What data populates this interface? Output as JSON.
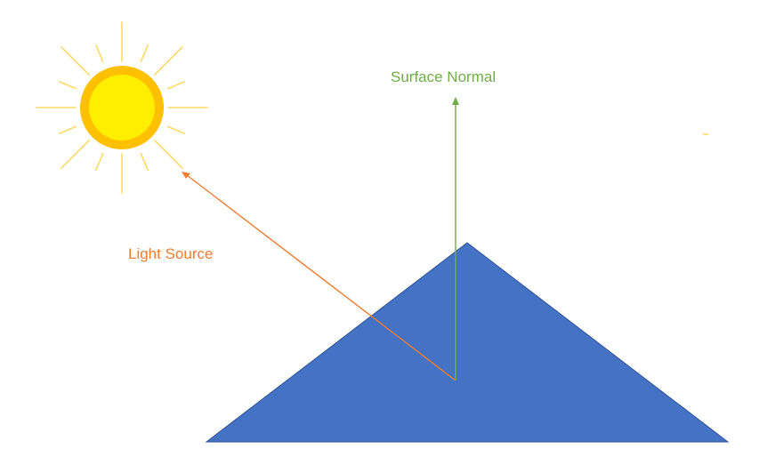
{
  "diagram": {
    "labels": {
      "surface_normal": "Surface Normal",
      "light_source": "Light Source"
    },
    "icons": {
      "sun": "sun-icon"
    },
    "colors": {
      "background": "#ffffff",
      "mountain_fill": "#4472c4",
      "mountain_stroke": "#2f5597",
      "normal_vector": "#70ad47",
      "light_vector": "#ed7d31",
      "sun_core": "#ffee00",
      "sun_ring": "#ffc000",
      "sun_rays": "#ffd966"
    }
  }
}
